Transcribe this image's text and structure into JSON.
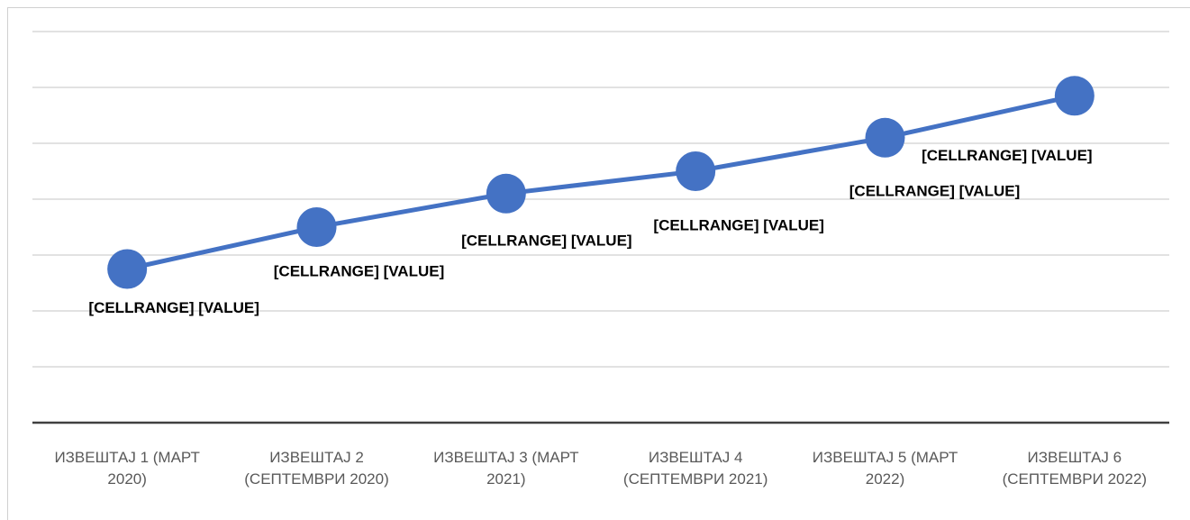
{
  "chart_data": {
    "type": "line",
    "categories": [
      "ИЗВЕШТАЈ 1 (МАРТ 2020)",
      "ИЗВЕШТАЈ 2 (СЕПТЕМВРИ 2020)",
      "ИЗВЕШТАЈ 3 (МАРТ 2021)",
      "ИЗВЕШТАЈ 4 (СЕПТЕМВРИ 2021)",
      "ИЗВЕШТАЈ 5 (МАРТ 2022)",
      "ИЗВЕШТАЈ 6 (СЕПТЕМВРИ 2022)"
    ],
    "series": [
      {
        "color": "#4472c4",
        "values": [
          2.75,
          3.5,
          4.1,
          4.5,
          5.1,
          5.85
        ],
        "labels": [
          "[CELLRANGE] [VALUE]",
          "[CELLRANGE] [VALUE]",
          "[CELLRANGE] [VALUE]",
          "[CELLRANGE] [VALUE]",
          "[CELLRANGE] [VALUE]",
          "[CELLRANGE] [VALUE]"
        ]
      }
    ],
    "ylim": [
      0,
      7
    ],
    "yticks": [
      0,
      1,
      2,
      3,
      4,
      5,
      6,
      7
    ],
    "grid": true
  }
}
